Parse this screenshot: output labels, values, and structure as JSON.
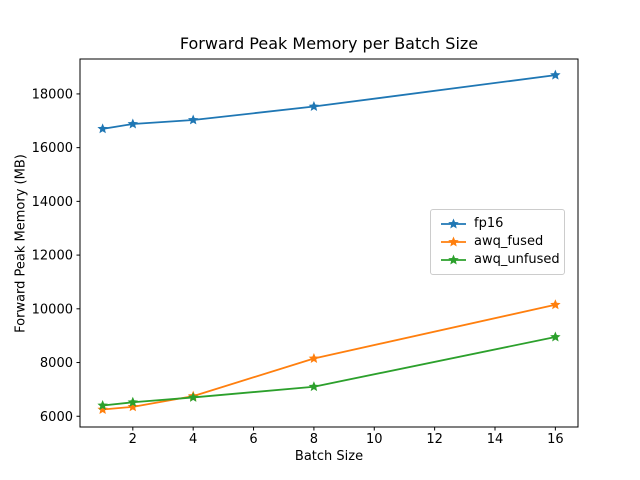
{
  "title": "Forward Peak Memory per Batch Size",
  "chart_data": {
    "type": "line",
    "title": "Forward Peak Memory per Batch Size",
    "xlabel": "Batch Size",
    "ylabel": "Forward Peak Memory (MB)",
    "x": [
      1,
      2,
      4,
      8,
      16
    ],
    "series": [
      {
        "name": "fp16",
        "color": "#1f77b4",
        "values": [
          16700,
          16880,
          17030,
          17530,
          18700
        ]
      },
      {
        "name": "awq_fused",
        "color": "#ff7f0e",
        "values": [
          6250,
          6350,
          6750,
          8150,
          10150
        ]
      },
      {
        "name": "awq_unfused",
        "color": "#2ca02c",
        "values": [
          6400,
          6520,
          6700,
          7100,
          8950
        ]
      }
    ],
    "marker": "star",
    "line_width": 1.8,
    "xlim": [
      0.25,
      16.75
    ],
    "ylim": [
      5600,
      19300
    ],
    "xticks": [
      2,
      4,
      6,
      8,
      10,
      12,
      14,
      16
    ],
    "yticks": [
      6000,
      8000,
      10000,
      12000,
      14000,
      16000,
      18000
    ],
    "grid": false,
    "legend_position": "center-right",
    "axis_color": "#000000",
    "background_color": "#ffffff"
  }
}
